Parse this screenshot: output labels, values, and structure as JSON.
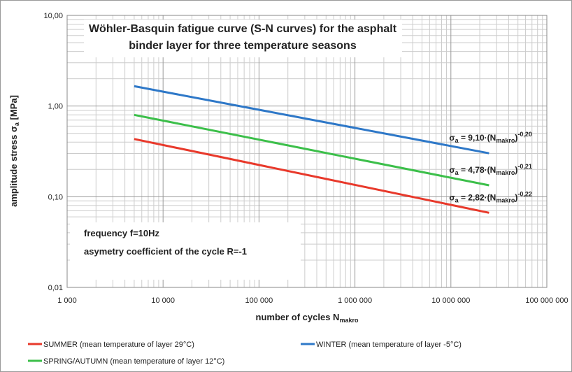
{
  "chart_data": {
    "type": "line",
    "title": "Wöhler-Basquin fatigue curve (S-N curves) for the asphalt binder layer for three temperature seasons",
    "x_label": [
      "number of cycles  N",
      "makro"
    ],
    "y_label": [
      "amplitude stress σ",
      "a",
      "  [MPa]"
    ],
    "xscale": "log",
    "yscale": "log",
    "grid": true,
    "legend": "bottom",
    "xlim": [
      1000,
      100000000
    ],
    "xticks": [
      {
        "value": 1000,
        "label": "1 000"
      },
      {
        "value": 10000,
        "label": "10 000"
      },
      {
        "value": 100000,
        "label": "100 000"
      },
      {
        "value": 1000000,
        "label": "1 000 000"
      },
      {
        "value": 10000000,
        "label": "10 000 000"
      },
      {
        "value": 100000000,
        "label": "100 000 000"
      }
    ],
    "ylim": [
      0.01,
      10
    ],
    "yticks": [
      {
        "value": 0.01,
        "label": "0,01"
      },
      {
        "value": 0.1,
        "label": "0,10"
      },
      {
        "value": 1,
        "label": "1,00"
      },
      {
        "value": 10,
        "label": "10,00"
      }
    ],
    "x": [
      5000,
      25000000
    ],
    "series": [
      {
        "name": "SUMMER (mean temperature of layer 29°C)",
        "color": "#e8392b",
        "values": [
          0.433,
          0.0665
        ]
      },
      {
        "name": "WINTER (mean temperature of layer -5°C)",
        "color": "#2e78c8",
        "values": [
          1.656,
          0.3016
        ]
      },
      {
        "name": "SPRING/AUTUMN (mean temperature of layer 12°C)",
        "color": "#3cbf4a",
        "values": [
          0.799,
          0.1336
        ]
      }
    ],
    "equations": [
      {
        "series": 0,
        "parts": [
          "σ",
          "a",
          " = 2,82·(N",
          "makro",
          ")",
          "-0,22"
        ]
      },
      {
        "series": 1,
        "parts": [
          "σ",
          "a",
          " = 9,10·(N",
          "makro",
          ")",
          "-0,20"
        ]
      },
      {
        "series": 2,
        "parts": [
          "σ",
          "a",
          " = 4,78·(N",
          "makro",
          ")",
          "-0,21"
        ]
      }
    ],
    "notes": [
      "frequency f=10Hz",
      "asymetry coefficient of the cycle R=-1"
    ]
  }
}
